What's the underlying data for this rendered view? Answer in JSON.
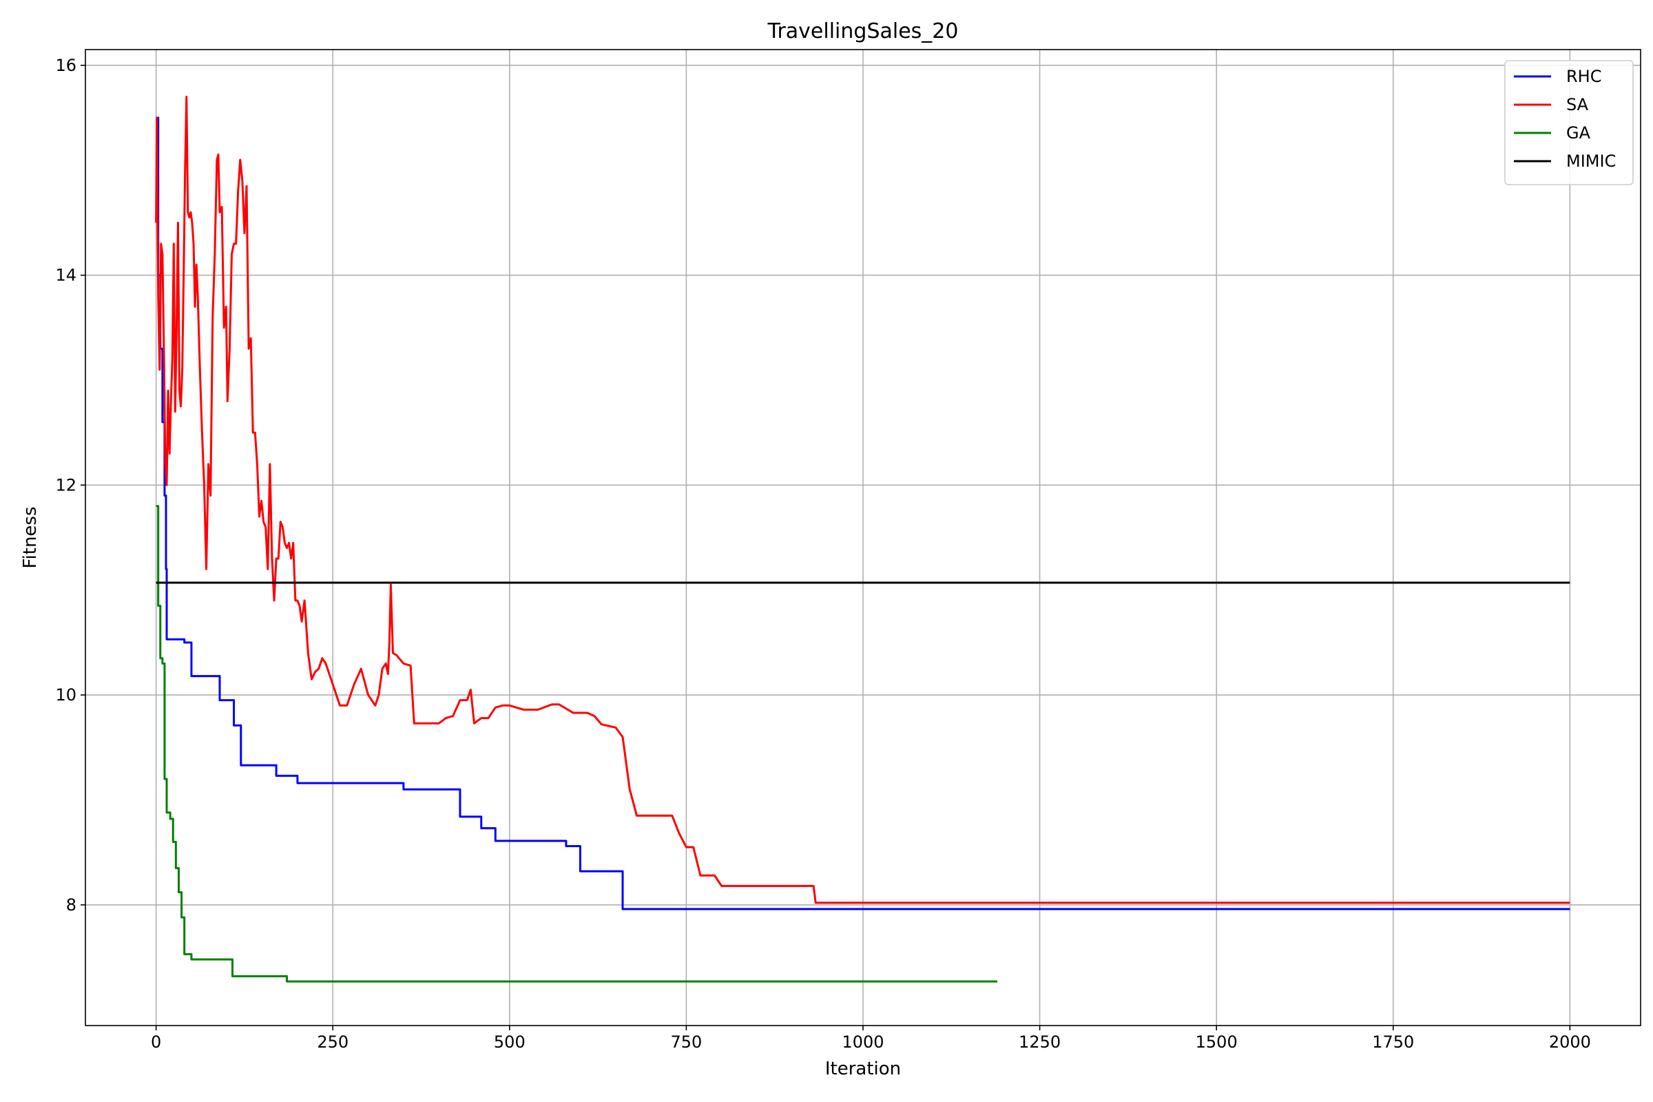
{
  "chart_data": {
    "type": "line",
    "title": "TravellingSales_20",
    "xlabel": "Iteration",
    "ylabel": "Fitness",
    "xlim": [
      -100,
      2100
    ],
    "ylim": [
      6.85,
      16.15
    ],
    "xticks": [
      0,
      250,
      500,
      750,
      1000,
      1250,
      1500,
      1750,
      2000
    ],
    "yticks": [
      8,
      10,
      12,
      14,
      16
    ],
    "grid": true,
    "legend_position": "upper right",
    "series": [
      {
        "name": "RHC",
        "color": "#0000ff",
        "step": true,
        "x": [
          0,
          3,
          6,
          9,
          12,
          14,
          15,
          40,
          50,
          90,
          110,
          120,
          170,
          200,
          350,
          430,
          460,
          480,
          580,
          600,
          660,
          2000
        ],
        "y": [
          15.5,
          14.0,
          13.3,
          12.6,
          11.9,
          11.2,
          10.53,
          10.5,
          10.18,
          9.95,
          9.71,
          9.33,
          9.23,
          9.16,
          9.1,
          8.84,
          8.73,
          8.61,
          8.56,
          8.32,
          7.96,
          7.96
        ]
      },
      {
        "name": "SA",
        "color": "#ff0000",
        "step": false,
        "x": [
          0,
          1,
          3,
          5,
          7,
          9,
          11,
          13,
          15,
          17,
          19,
          21,
          23,
          25,
          27,
          29,
          31,
          33,
          35,
          37,
          39,
          41,
          43,
          45,
          47,
          49,
          51,
          53,
          55,
          57,
          59,
          62,
          65,
          68,
          71,
          74,
          77,
          80,
          83,
          86,
          88,
          90,
          93,
          96,
          99,
          101,
          104,
          107,
          110,
          113,
          116,
          119,
          122,
          125,
          128,
          131,
          134,
          137,
          140,
          143,
          146,
          149,
          152,
          155,
          158,
          161,
          164,
          167,
          170,
          173,
          176,
          179,
          182,
          185,
          188,
          191,
          194,
          197,
          200,
          203,
          206,
          210,
          215,
          220,
          225,
          230,
          235,
          240,
          250,
          260,
          270,
          280,
          290,
          300,
          310,
          315,
          320,
          325,
          328,
          330,
          332,
          335,
          340,
          350,
          360,
          365,
          380,
          400,
          410,
          420,
          430,
          440,
          445,
          450,
          460,
          470,
          480,
          490,
          500,
          520,
          540,
          560,
          570,
          590,
          610,
          620,
          630,
          650,
          660,
          670,
          680,
          700,
          730,
          740,
          750,
          760,
          770,
          790,
          800,
          850,
          900,
          930,
          933,
          2000
        ],
        "y": [
          14.5,
          15.5,
          13.8,
          13.1,
          14.3,
          14.2,
          13.3,
          12.2,
          12.0,
          12.9,
          12.3,
          12.8,
          13.2,
          14.3,
          12.7,
          13.5,
          14.5,
          12.9,
          12.75,
          13.1,
          14.0,
          15.0,
          15.7,
          14.6,
          14.55,
          14.6,
          14.5,
          14.3,
          13.7,
          14.1,
          13.8,
          13.1,
          12.5,
          12.0,
          11.2,
          12.2,
          11.9,
          13.6,
          14.2,
          15.1,
          15.15,
          14.6,
          14.65,
          13.5,
          13.7,
          12.8,
          13.3,
          14.2,
          14.3,
          14.3,
          14.8,
          15.1,
          14.9,
          14.4,
          14.85,
          13.3,
          13.4,
          12.5,
          12.5,
          12.2,
          11.7,
          11.85,
          11.65,
          11.6,
          11.2,
          12.2,
          11.3,
          10.9,
          11.3,
          11.3,
          11.65,
          11.6,
          11.45,
          11.4,
          11.45,
          11.3,
          11.45,
          10.9,
          10.9,
          10.85,
          10.7,
          10.9,
          10.4,
          10.15,
          10.22,
          10.25,
          10.35,
          10.3,
          10.1,
          9.9,
          9.9,
          10.1,
          10.25,
          10.0,
          9.9,
          10.0,
          10.25,
          10.3,
          10.2,
          10.5,
          11.05,
          10.4,
          10.38,
          10.3,
          10.28,
          9.73,
          9.73,
          9.73,
          9.78,
          9.8,
          9.95,
          9.95,
          10.05,
          9.73,
          9.78,
          9.78,
          9.88,
          9.9,
          9.9,
          9.86,
          9.86,
          9.91,
          9.91,
          9.83,
          9.83,
          9.8,
          9.72,
          9.69,
          9.6,
          9.1,
          8.85,
          8.85,
          8.85,
          8.68,
          8.55,
          8.55,
          8.28,
          8.28,
          8.18,
          8.18,
          8.18,
          8.18,
          8.02,
          8.02
        ]
      },
      {
        "name": "GA",
        "color": "#008000",
        "step": true,
        "x": [
          0,
          3,
          6,
          9,
          12,
          15,
          20,
          24,
          28,
          32,
          36,
          40,
          50,
          60,
          70,
          108,
          120,
          150,
          185,
          1190
        ],
        "y": [
          11.8,
          10.85,
          10.35,
          10.3,
          9.2,
          8.88,
          8.82,
          8.6,
          8.35,
          8.12,
          7.88,
          7.53,
          7.48,
          7.48,
          7.48,
          7.32,
          7.32,
          7.32,
          7.27,
          7.27
        ]
      },
      {
        "name": "MIMIC",
        "color": "#000000",
        "step": false,
        "x": [
          0,
          2000
        ],
        "y": [
          11.07,
          11.07
        ]
      }
    ]
  }
}
